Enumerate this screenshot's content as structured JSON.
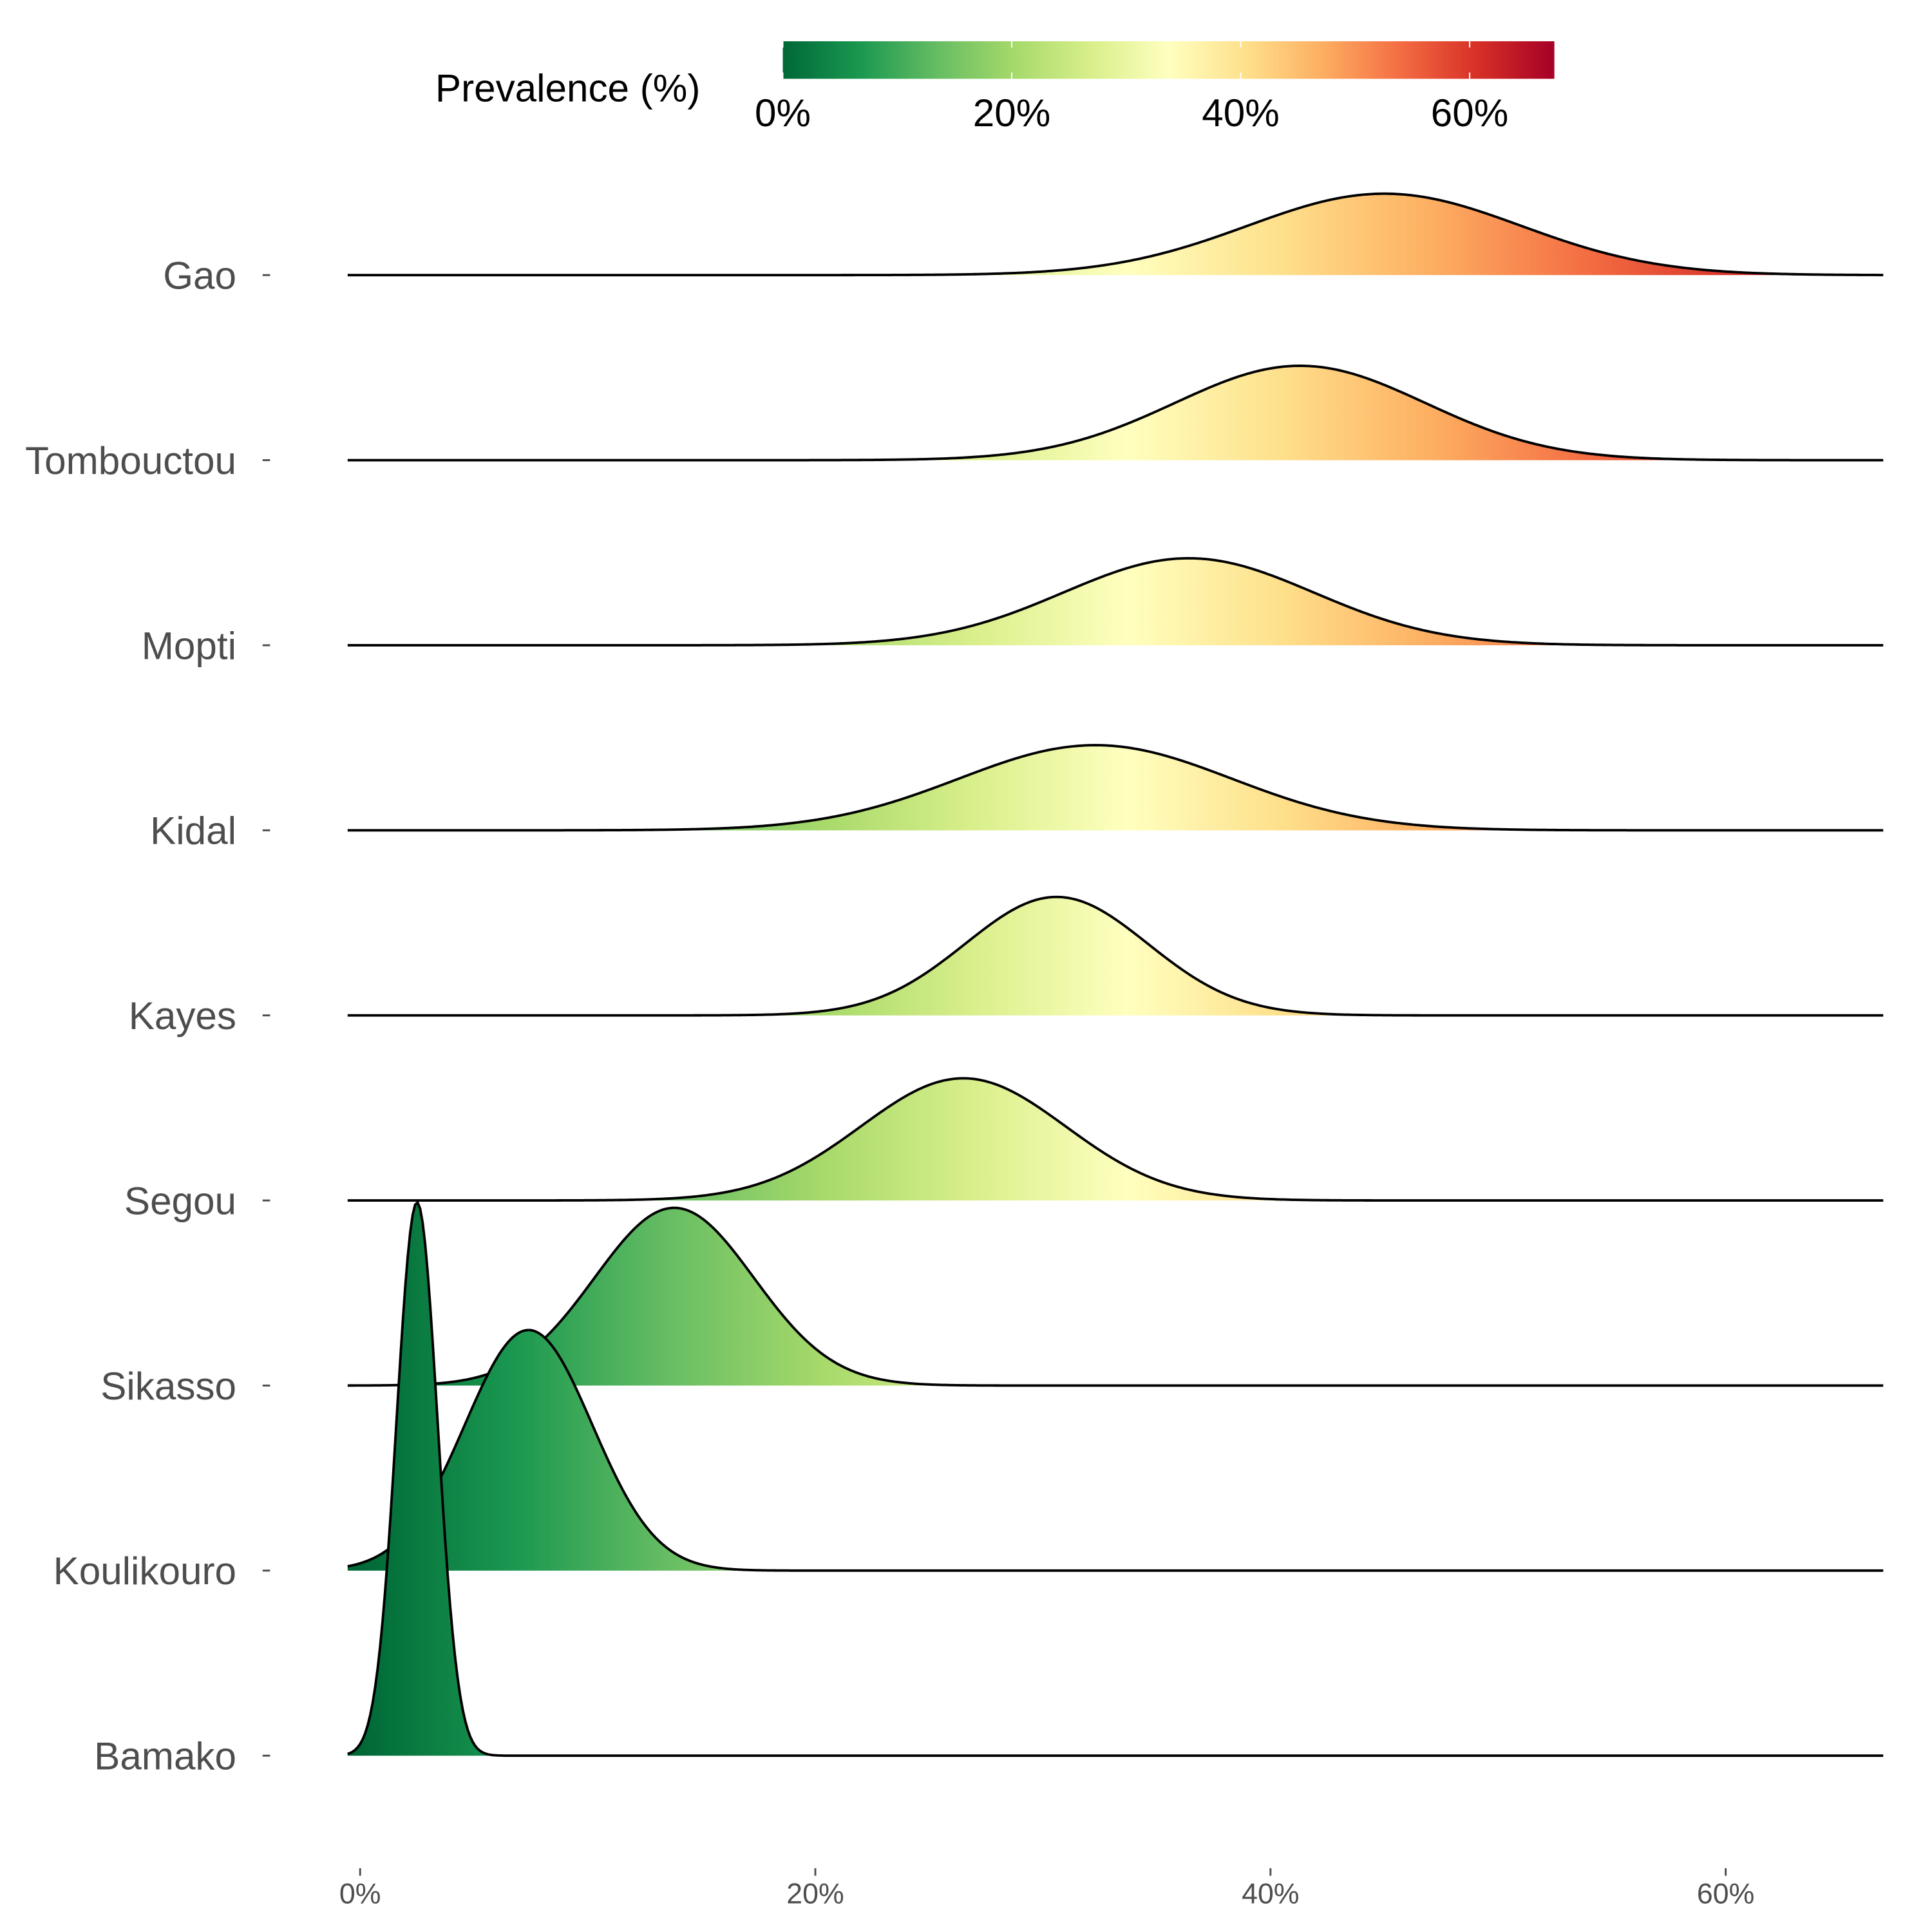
{
  "chart_data": {
    "type": "ridgeline-density",
    "title": "",
    "xlabel": "",
    "ylabel": "",
    "xlim": [
      -0.5,
      67
    ],
    "x_ticks": [
      "0%",
      "20%",
      "40%",
      "60%"
    ],
    "x_tick_values": [
      0,
      20,
      40,
      60
    ],
    "grid": false,
    "legend": {
      "title": "Prevalence (%)",
      "placement": "top",
      "range": [
        0,
        67.4
      ],
      "ticks": [
        "0%",
        "20%",
        "40%",
        "60%"
      ],
      "tick_values": [
        0,
        20,
        40,
        60
      ],
      "colors": [
        "#006837",
        "#1a9850",
        "#66bd63",
        "#a6d96a",
        "#d9ef8b",
        "#ffffbf",
        "#fee08b",
        "#fdae61",
        "#f46d43",
        "#d73027",
        "#a50026"
      ]
    },
    "series": [
      {
        "name": "Gao",
        "peak": 45.0,
        "sd": 6.0,
        "relative_height": 0.44
      },
      {
        "name": "Tombouctou",
        "peak": 41.3,
        "sd": 5.5,
        "relative_height": 0.51
      },
      {
        "name": "Mopti",
        "peak": 36.4,
        "sd": 5.5,
        "relative_height": 0.47
      },
      {
        "name": "Kidal",
        "peak": 32.3,
        "sd": 6.0,
        "relative_height": 0.46
      },
      {
        "name": "Kayes",
        "peak": 30.6,
        "sd": 4.0,
        "relative_height": 0.64
      },
      {
        "name": "Segou",
        "peak": 26.5,
        "sd": 4.5,
        "relative_height": 0.66
      },
      {
        "name": "Sikasso",
        "peak": 13.8,
        "sd": 3.5,
        "relative_height": 0.96
      },
      {
        "name": "Koulikouro",
        "peak": 7.4,
        "sd": 2.8,
        "relative_height": 1.3
      },
      {
        "name": "Bamako",
        "peak": 2.5,
        "sd": 0.9,
        "relative_height": 2.99
      }
    ]
  }
}
